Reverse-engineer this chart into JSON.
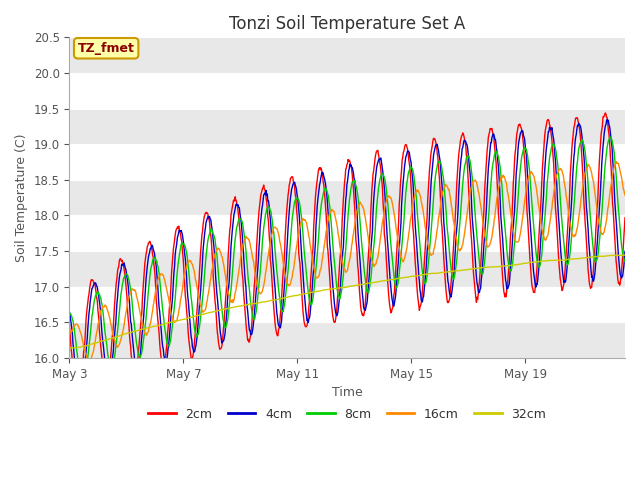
{
  "title": "Tonzi Soil Temperature Set A",
  "xlabel": "Time",
  "ylabel": "Soil Temperature (C)",
  "annotation": "TZ_fmet",
  "ylim": [
    16.0,
    20.5
  ],
  "xtick_positions": [
    0,
    4,
    8,
    12,
    16
  ],
  "xtick_labels": [
    "May 3",
    "May 7",
    "May 11",
    "May 15",
    "May 19"
  ],
  "legend_labels": [
    "2cm",
    "4cm",
    "8cm",
    "16cm",
    "32cm"
  ],
  "colors": [
    "#ff0000",
    "#0000cc",
    "#00cc00",
    "#ff8800",
    "#cccc00"
  ],
  "n_days": 19.5,
  "n_points_per_day": 48,
  "band_colors": [
    "#ffffff",
    "#e8e8e8"
  ]
}
